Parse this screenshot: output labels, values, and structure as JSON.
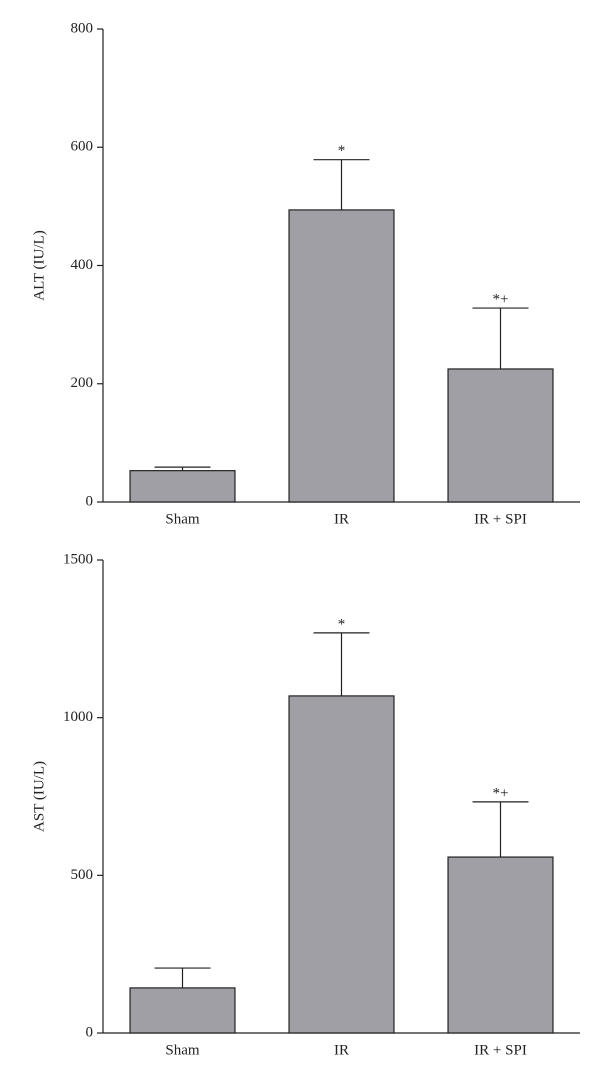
{
  "chart_data": [
    {
      "type": "bar",
      "y_label": "ALT (IU/L)",
      "categories": [
        "Sham",
        "IR",
        "IR + SPI"
      ],
      "values": [
        53,
        494,
        225
      ],
      "errors": [
        6,
        85,
        103
      ],
      "annotations": [
        null,
        "*",
        "*+"
      ],
      "color": "#a09fa6",
      "ylim": [
        0,
        800
      ],
      "yticks": [
        0,
        200,
        400,
        600,
        800
      ]
    },
    {
      "type": "bar",
      "y_label": "AST (IU/L)",
      "categories": [
        "Sham",
        "IR",
        "IR + SPI"
      ],
      "values": [
        143,
        1069,
        558
      ],
      "errors": [
        63,
        200,
        175
      ],
      "annotations": [
        null,
        "*",
        "*+"
      ],
      "color": "#a09fa6",
      "ylim": [
        0,
        1500
      ],
      "yticks": [
        0,
        500,
        1000,
        1500
      ]
    }
  ]
}
